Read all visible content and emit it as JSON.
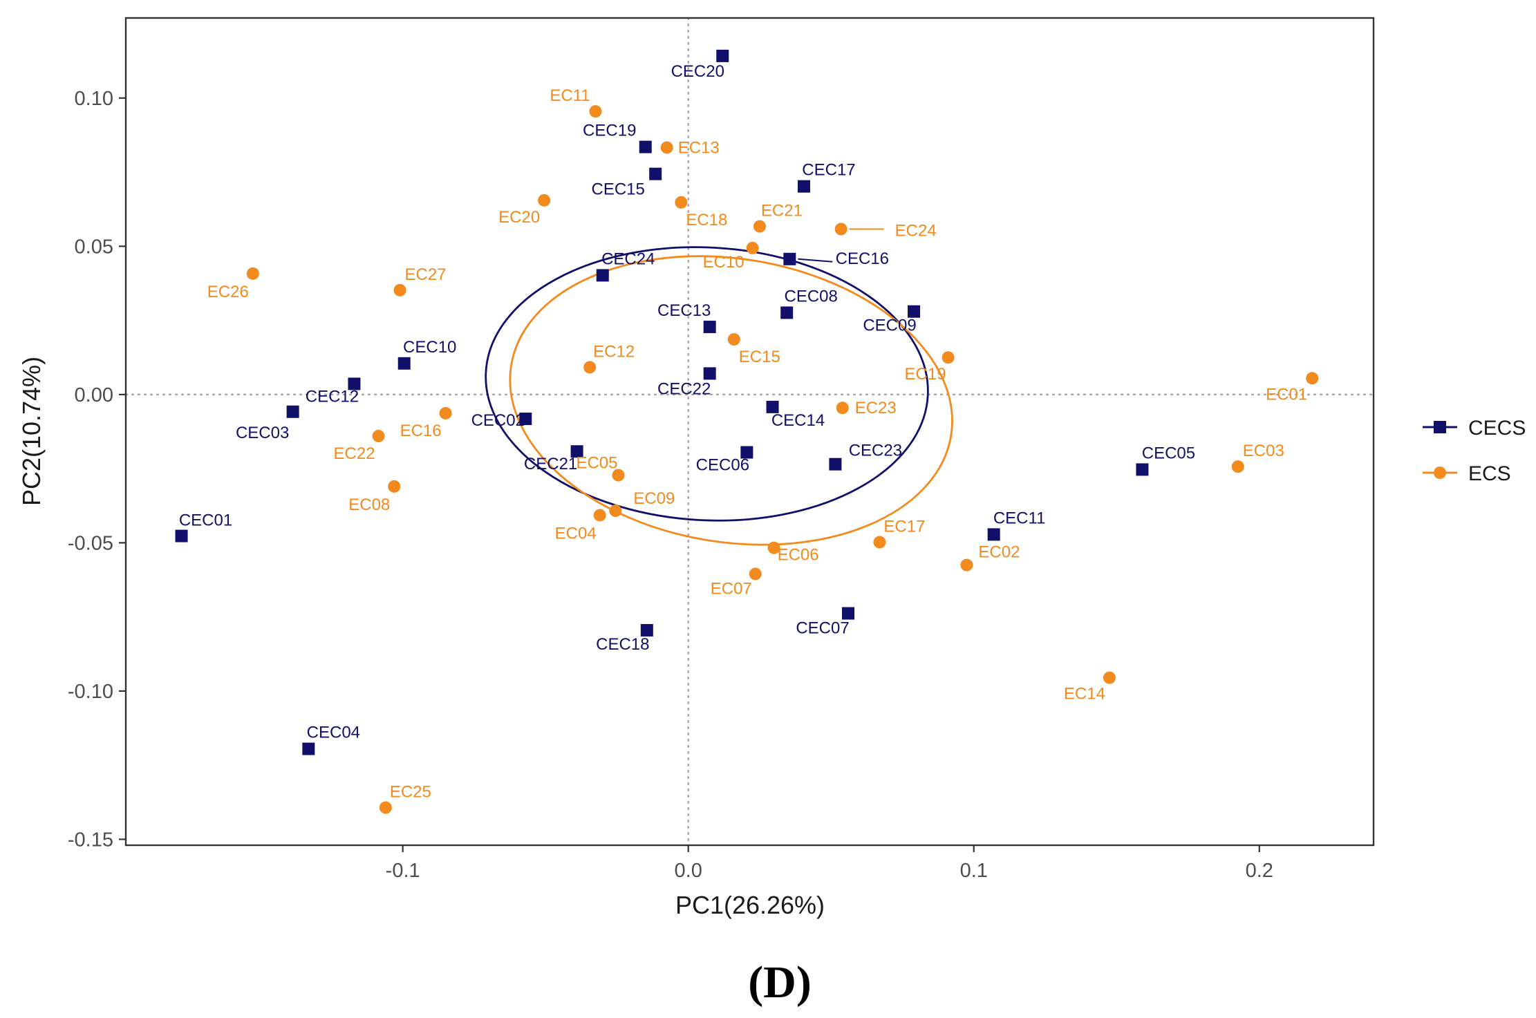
{
  "chart_data": {
    "type": "scatter",
    "xlabel": "PC1(26.26%)",
    "ylabel": "PC2(10.74%)",
    "xlim": [
      -0.197,
      0.24
    ],
    "ylim": [
      -0.152,
      0.127
    ],
    "xticks": [
      {
        "value": -0.1,
        "label": "-0.1"
      },
      {
        "value": 0.0,
        "label": "0.0"
      },
      {
        "value": 0.1,
        "label": "0.1"
      },
      {
        "value": 0.2,
        "label": "0.2"
      }
    ],
    "yticks": [
      {
        "value": 0.1,
        "label": "0.10"
      },
      {
        "value": 0.05,
        "label": "0.05"
      },
      {
        "value": 0.0,
        "label": "0.00"
      },
      {
        "value": -0.05,
        "label": "-0.05"
      },
      {
        "value": -0.1,
        "label": "-0.10"
      },
      {
        "value": -0.15,
        "label": "-0.15"
      }
    ],
    "reference_lines": {
      "x": 0,
      "y": 0
    },
    "legend_position": "right",
    "panel_label": "(D)",
    "series": [
      {
        "name": "CECS",
        "color": "#10106b",
        "marker": "square",
        "ellipse": {
          "cx": 0.0065,
          "cy": 0.0036,
          "rx": 0.0775,
          "ry": 0.046,
          "angle": 3
        },
        "points": [
          {
            "label": "CEC01",
            "x": -0.1775,
            "y": -0.0477
          },
          {
            "label": "CEC02",
            "x": -0.057,
            "y": -0.0082
          },
          {
            "label": "CEC03",
            "x": -0.1385,
            "y": -0.0058
          },
          {
            "label": "CEC04",
            "x": -0.133,
            "y": -0.1195
          },
          {
            "label": "CEC05",
            "x": 0.159,
            "y": -0.0253
          },
          {
            "label": "CEC06",
            "x": 0.0205,
            "y": -0.0195
          },
          {
            "label": "CEC07",
            "x": 0.056,
            "y": -0.0738
          },
          {
            "label": "CEC08",
            "x": 0.0345,
            "y": 0.0276
          },
          {
            "label": "CEC09",
            "x": 0.079,
            "y": 0.028
          },
          {
            "label": "CEC10",
            "x": -0.0995,
            "y": 0.0105
          },
          {
            "label": "CEC11",
            "x": 0.107,
            "y": -0.0472
          },
          {
            "label": "CEC12",
            "x": -0.117,
            "y": 0.0036
          },
          {
            "label": "CEC13",
            "x": 0.0075,
            "y": 0.0228
          },
          {
            "label": "CEC14",
            "x": 0.0295,
            "y": -0.0042
          },
          {
            "label": "CEC15",
            "x": -0.0115,
            "y": 0.0744
          },
          {
            "label": "CEC16",
            "x": 0.0355,
            "y": 0.0457
          },
          {
            "label": "CEC17",
            "x": 0.0405,
            "y": 0.0702
          },
          {
            "label": "CEC18",
            "x": -0.0145,
            "y": -0.0795
          },
          {
            "label": "CEC19",
            "x": -0.015,
            "y": 0.0835
          },
          {
            "label": "CEC20",
            "x": 0.012,
            "y": 0.1142
          },
          {
            "label": "CEC21",
            "x": -0.039,
            "y": -0.0192
          },
          {
            "label": "CEC22",
            "x": 0.0075,
            "y": 0.0071
          },
          {
            "label": "CEC23",
            "x": 0.0515,
            "y": -0.0235
          },
          {
            "label": "CEC24",
            "x": -0.03,
            "y": 0.0402
          }
        ]
      },
      {
        "name": "ECS",
        "color": "#f28a1d",
        "marker": "circle",
        "ellipse": {
          "cx": 0.015,
          "cy": -0.002,
          "rx": 0.078,
          "ry": 0.0478,
          "angle": 9
        },
        "points": [
          {
            "label": "EC01",
            "x": 0.2185,
            "y": 0.0055
          },
          {
            "label": "EC02",
            "x": 0.0975,
            "y": -0.0575
          },
          {
            "label": "EC03",
            "x": 0.1925,
            "y": -0.0243
          },
          {
            "label": "EC04",
            "x": -0.031,
            "y": -0.0407
          },
          {
            "label": "EC05",
            "x": -0.0245,
            "y": -0.0272
          },
          {
            "label": "EC07",
            "x": 0.0235,
            "y": -0.0605
          },
          {
            "label": "EC08",
            "x": -0.103,
            "y": -0.031
          },
          {
            "label": "EC09",
            "x": -0.0255,
            "y": -0.0392
          },
          {
            "label": "EC10",
            "x": 0.0225,
            "y": 0.0494
          },
          {
            "label": "EC11",
            "x": -0.0325,
            "y": 0.0955
          },
          {
            "label": "EC12",
            "x": -0.0345,
            "y": 0.0092
          },
          {
            "label": "EC13",
            "x": -0.0075,
            "y": 0.0833
          },
          {
            "label": "EC14",
            "x": 0.1475,
            "y": -0.0955
          },
          {
            "label": "EC15",
            "x": 0.016,
            "y": 0.0186
          },
          {
            "label": "EC16",
            "x": -0.085,
            "y": -0.0063
          },
          {
            "label": "EC17",
            "x": 0.067,
            "y": -0.0498
          },
          {
            "label": "EC18",
            "x": -0.0025,
            "y": 0.0648
          },
          {
            "label": "EC19",
            "x": 0.091,
            "y": 0.0125
          },
          {
            "label": "EC20",
            "x": -0.0505,
            "y": 0.0655
          },
          {
            "label": "EC21",
            "x": 0.025,
            "y": 0.0567
          },
          {
            "label": "EC22",
            "x": -0.1085,
            "y": -0.014
          },
          {
            "label": "EC23",
            "x": 0.054,
            "y": -0.0045
          },
          {
            "label": "EC24",
            "x": 0.0535,
            "y": 0.0558
          },
          {
            "label": "EC25",
            "x": -0.106,
            "y": -0.1393
          },
          {
            "label": "EC26",
            "x": -0.1525,
            "y": 0.0408
          },
          {
            "label": "EC27",
            "x": -0.101,
            "y": 0.0352
          },
          {
            "label": "EC06",
            "x": 0.03,
            "y": -0.0517
          }
        ]
      }
    ]
  }
}
